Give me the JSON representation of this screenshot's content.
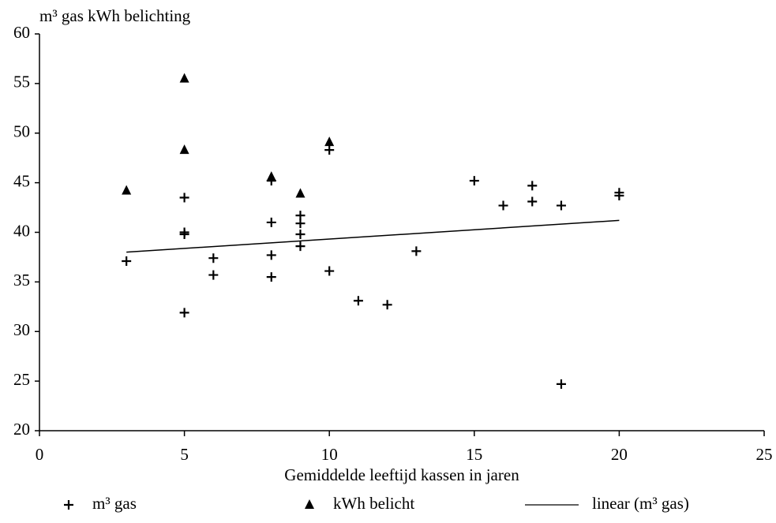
{
  "chart_data": {
    "type": "scatter",
    "y_label": "m³ gas kWh belichting",
    "x_label": "Gemiddelde leeftijd kassen in jaren",
    "xlim": [
      0,
      25
    ],
    "xticks": [
      0,
      5,
      10,
      15,
      20,
      25
    ],
    "ylim": [
      20,
      60
    ],
    "yticks": [
      20,
      25,
      30,
      35,
      40,
      45,
      50,
      55,
      60
    ],
    "series": [
      {
        "name": "m³ gas",
        "marker": "plus",
        "color": "#000000",
        "x": [
          3,
          5,
          5,
          5,
          5,
          6,
          6,
          8,
          8,
          8,
          8,
          9,
          9,
          9,
          9,
          10,
          10,
          11,
          12,
          13,
          15,
          16,
          17,
          17,
          18,
          18,
          20,
          20
        ],
        "values": [
          37.1,
          43.5,
          40.0,
          39.8,
          31.9,
          37.4,
          35.7,
          45.2,
          41.0,
          37.7,
          35.5,
          41.7,
          40.9,
          39.8,
          38.6,
          48.3,
          36.1,
          33.1,
          32.7,
          38.1,
          45.2,
          42.7,
          44.7,
          43.1,
          42.7,
          24.7,
          44.0,
          43.7
        ]
      },
      {
        "name": "kWh belicht",
        "marker": "triangle",
        "color": "#000000",
        "x": [
          3,
          5,
          5,
          8,
          9,
          10
        ],
        "values": [
          44.2,
          55.5,
          48.3,
          45.6,
          43.9,
          49.1
        ]
      },
      {
        "name": "linear (m³ gas)",
        "marker": "line",
        "color": "#000000",
        "x": [
          3,
          20
        ],
        "values": [
          38.0,
          41.2
        ]
      }
    ]
  }
}
